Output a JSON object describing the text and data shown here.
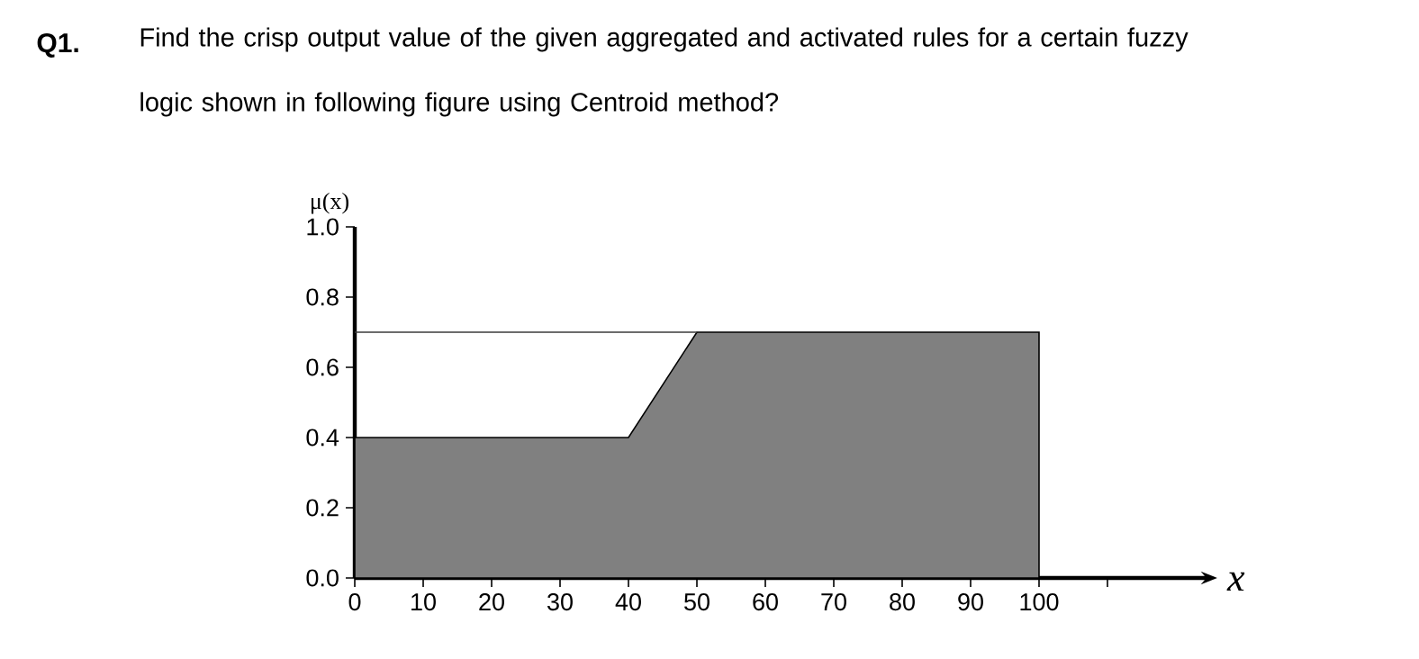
{
  "chart_data": {
    "type": "area",
    "title": "Q1.",
    "subtitle": "Find the crisp output value of the given aggregated and activated rules for a certain fuzzy logic shown in following figure using Centroid method?",
    "xlabel": "x",
    "ylabel": "μ(x)",
    "series": [
      {
        "color": "#808080",
        "x": [
          0,
          40,
          50,
          100,
          100
        ],
        "values": [
          0.4,
          0.4,
          0.7,
          0.7,
          0
        ]
      },
      {
        "type": "line",
        "color": "#3a3a3a",
        "x": [
          0,
          50
        ],
        "values": [
          0.7,
          0.7
        ]
      }
    ],
    "xlim": [
      0,
      125
    ],
    "ylim": [
      0,
      1
    ],
    "xticks": [
      0,
      10,
      20,
      30,
      40,
      50,
      60,
      70,
      80,
      90,
      100,
      {
        "value": 110,
        "label": null
      }
    ],
    "yticks": [
      {
        "value": 0,
        "label": "0.0"
      },
      {
        "value": 0.2,
        "label": "0.2"
      },
      {
        "value": 0.4,
        "label": "0.4"
      },
      {
        "value": 0.6,
        "label": "0.6"
      },
      {
        "value": 0.8,
        "label": "0.8"
      },
      {
        "value": 1,
        "label": "1.0"
      }
    ],
    "grid": false
  }
}
